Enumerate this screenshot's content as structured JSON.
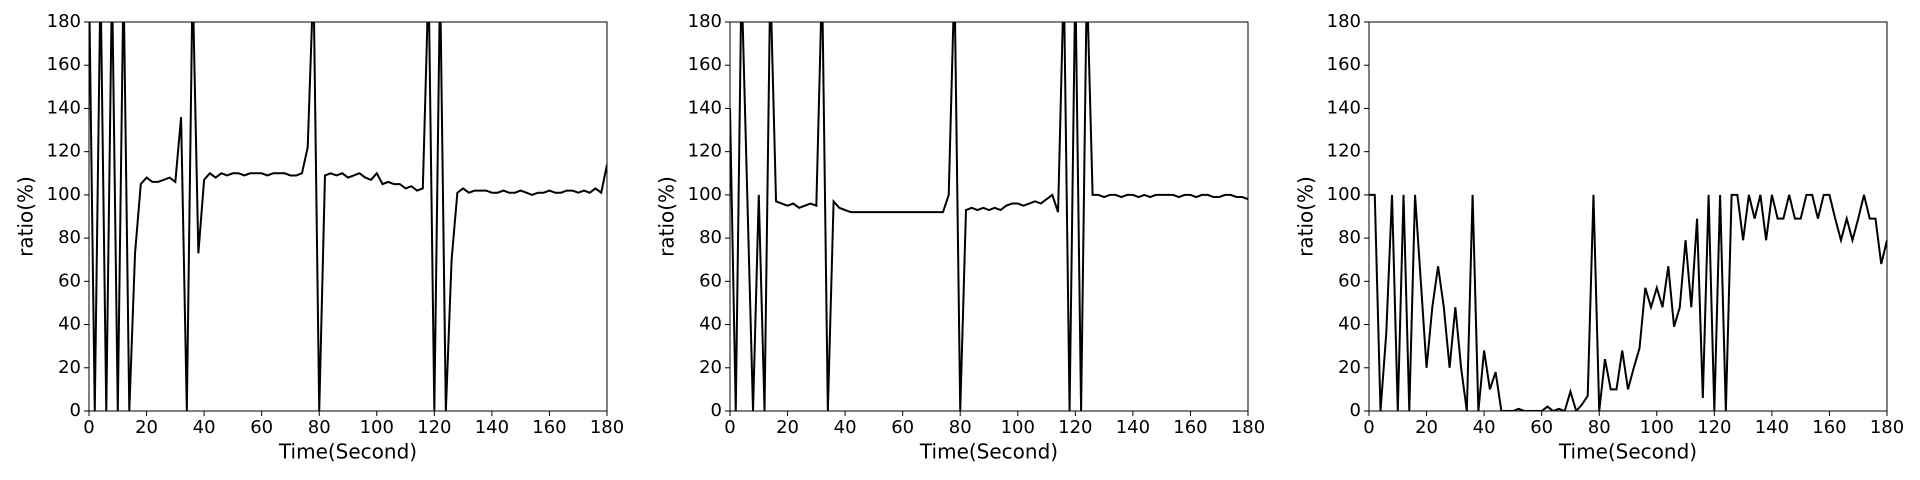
{
  "chart_data": [
    {
      "type": "line",
      "x_label": "Time(Second)",
      "y_label": "ratio(%)",
      "x": [
        0,
        2,
        4,
        6,
        8,
        10,
        12,
        14,
        16,
        18,
        20,
        22,
        24,
        26,
        28,
        30,
        32,
        34,
        36,
        38,
        40,
        42,
        44,
        46,
        48,
        50,
        52,
        54,
        56,
        58,
        60,
        62,
        64,
        66,
        68,
        70,
        72,
        74,
        76,
        78,
        80,
        82,
        84,
        86,
        88,
        90,
        92,
        94,
        96,
        98,
        100,
        102,
        104,
        106,
        108,
        110,
        112,
        114,
        116,
        118,
        120,
        122,
        124,
        126,
        128,
        130,
        132,
        134,
        136,
        138,
        140,
        142,
        144,
        146,
        148,
        150,
        152,
        154,
        156,
        158,
        160,
        162,
        164,
        166,
        168,
        170,
        172,
        174,
        176,
        178,
        180
      ],
      "series": [
        {
          "color": "#000000",
          "values": [
            200,
            0,
            200,
            0,
            200,
            0,
            200,
            0,
            73,
            105,
            108,
            106,
            106,
            107,
            108,
            106,
            136,
            0,
            200,
            73,
            107,
            110,
            108,
            110,
            109,
            110,
            110,
            109,
            110,
            110,
            110,
            109,
            110,
            110,
            110,
            109,
            109,
            110,
            122,
            200,
            0,
            109,
            110,
            109,
            110,
            108,
            109,
            110,
            108,
            107,
            110,
            105,
            106,
            105,
            105,
            103,
            104,
            102,
            103,
            200,
            0,
            200,
            0,
            70,
            101,
            103,
            101,
            102,
            102,
            102,
            101,
            101,
            102,
            101,
            101,
            102,
            101,
            100,
            101,
            101,
            102,
            101,
            101,
            102,
            102,
            101,
            102,
            101,
            103,
            101,
            114
          ]
        }
      ],
      "xlim": [
        0,
        180
      ],
      "ylim": [
        0,
        180
      ],
      "xticks": [
        0,
        20,
        40,
        60,
        80,
        100,
        120,
        140,
        160,
        180
      ],
      "yticks": [
        0,
        20,
        40,
        60,
        80,
        100,
        120,
        140,
        160,
        180
      ]
    },
    {
      "type": "line",
      "x_label": "Time(Second)",
      "y_label": "ratio(%)",
      "x": [
        0,
        2,
        4,
        6,
        8,
        10,
        12,
        14,
        16,
        18,
        20,
        22,
        24,
        26,
        28,
        30,
        32,
        34,
        36,
        38,
        40,
        42,
        44,
        46,
        48,
        50,
        52,
        54,
        56,
        58,
        60,
        62,
        64,
        66,
        68,
        70,
        72,
        74,
        76,
        78,
        80,
        82,
        84,
        86,
        88,
        90,
        92,
        94,
        96,
        98,
        100,
        102,
        104,
        106,
        108,
        110,
        112,
        114,
        116,
        118,
        120,
        122,
        124,
        126,
        128,
        130,
        132,
        134,
        136,
        138,
        140,
        142,
        144,
        146,
        148,
        150,
        152,
        154,
        156,
        158,
        160,
        162,
        164,
        166,
        168,
        170,
        172,
        174,
        176,
        178,
        180
      ],
      "series": [
        {
          "color": "#000000",
          "values": [
            140,
            0,
            200,
            100,
            0,
            100,
            0,
            200,
            97,
            96,
            95,
            96,
            94,
            95,
            96,
            95,
            200,
            0,
            97,
            94,
            93,
            92,
            92,
            92,
            92,
            92,
            92,
            92,
            92,
            92,
            92,
            92,
            92,
            92,
            92,
            92,
            92,
            92,
            100,
            200,
            0,
            93,
            94,
            93,
            94,
            93,
            94,
            93,
            95,
            96,
            96,
            95,
            96,
            97,
            96,
            98,
            100,
            92,
            200,
            0,
            200,
            0,
            200,
            100,
            100,
            99,
            100,
            100,
            99,
            100,
            100,
            99,
            100,
            99,
            100,
            100,
            100,
            100,
            99,
            100,
            100,
            99,
            100,
            100,
            99,
            99,
            100,
            100,
            99,
            99,
            98
          ]
        }
      ],
      "xlim": [
        0,
        180
      ],
      "ylim": [
        0,
        180
      ],
      "xticks": [
        0,
        20,
        40,
        60,
        80,
        100,
        120,
        140,
        160,
        180
      ],
      "yticks": [
        0,
        20,
        40,
        60,
        80,
        100,
        120,
        140,
        160,
        180
      ]
    },
    {
      "type": "line",
      "x_label": "Time(Second)",
      "y_label": "ratio(%)",
      "x": [
        0,
        2,
        4,
        6,
        8,
        10,
        12,
        14,
        16,
        18,
        20,
        22,
        24,
        26,
        28,
        30,
        32,
        34,
        36,
        38,
        40,
        42,
        44,
        46,
        48,
        50,
        52,
        54,
        56,
        58,
        60,
        62,
        64,
        66,
        68,
        70,
        72,
        74,
        76,
        78,
        80,
        82,
        84,
        86,
        88,
        90,
        92,
        94,
        96,
        98,
        100,
        102,
        104,
        106,
        108,
        110,
        112,
        114,
        116,
        118,
        120,
        122,
        124,
        126,
        128,
        130,
        132,
        134,
        136,
        138,
        140,
        142,
        144,
        146,
        148,
        150,
        152,
        154,
        156,
        158,
        160,
        162,
        164,
        166,
        168,
        170,
        172,
        174,
        176,
        178,
        180
      ],
      "series": [
        {
          "color": "#000000",
          "values": [
            100,
            100,
            0,
            36,
            100,
            0,
            100,
            0,
            100,
            60,
            20,
            48,
            67,
            48,
            20,
            48,
            20,
            0,
            100,
            0,
            28,
            10,
            18,
            0,
            0,
            0,
            1,
            0,
            0,
            0,
            0,
            2,
            0,
            1,
            0,
            9,
            0,
            3,
            7,
            100,
            0,
            24,
            10,
            10,
            28,
            10,
            20,
            29,
            57,
            48,
            57,
            48,
            67,
            39,
            48,
            79,
            48,
            89,
            6,
            100,
            0,
            100,
            0,
            100,
            100,
            79,
            100,
            89,
            100,
            79,
            100,
            89,
            89,
            100,
            89,
            89,
            100,
            100,
            89,
            100,
            100,
            89,
            79,
            89,
            79,
            89,
            100,
            89,
            89,
            68,
            79
          ]
        }
      ],
      "xlim": [
        0,
        180
      ],
      "ylim": [
        0,
        180
      ],
      "xticks": [
        0,
        20,
        40,
        60,
        80,
        100,
        120,
        140,
        160,
        180
      ],
      "yticks": [
        0,
        20,
        40,
        60,
        80,
        100,
        120,
        140,
        160,
        180
      ]
    }
  ]
}
